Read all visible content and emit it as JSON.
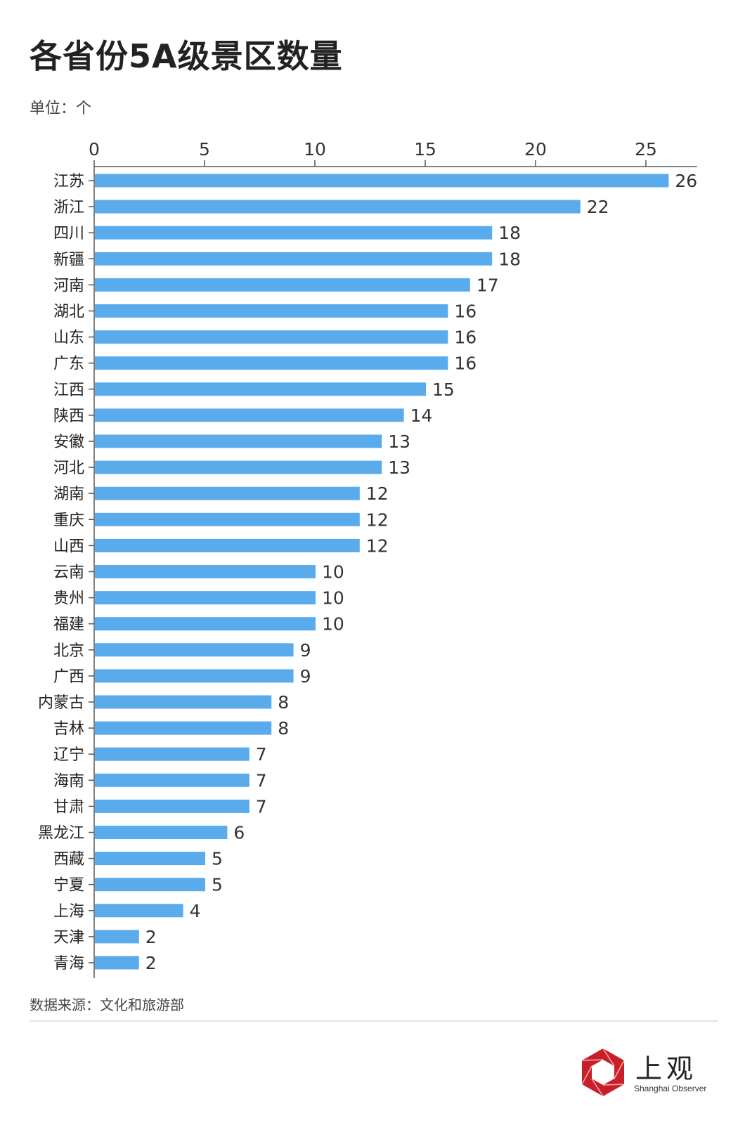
{
  "chart_data": {
    "type": "bar",
    "orientation": "horizontal",
    "title": "各省份5A级景区数量",
    "unit_label": "单位：个",
    "xlabel": "",
    "ylabel": "",
    "xlim": [
      0,
      27
    ],
    "xticks": [
      0,
      5,
      10,
      15,
      20,
      25
    ],
    "grid": false,
    "bar_color": "#5aabec",
    "categories": [
      "江苏",
      "浙江",
      "四川",
      "新疆",
      "河南",
      "湖北",
      "山东",
      "广东",
      "江西",
      "陕西",
      "安徽",
      "河北",
      "湖南",
      "重庆",
      "山西",
      "云南",
      "贵州",
      "福建",
      "北京",
      "广西",
      "内蒙古",
      "吉林",
      "辽宁",
      "海南",
      "甘肃",
      "黑龙江",
      "西藏",
      "宁夏",
      "上海",
      "天津",
      "青海"
    ],
    "values": [
      26,
      22,
      18,
      18,
      17,
      16,
      16,
      16,
      15,
      14,
      13,
      13,
      12,
      12,
      12,
      10,
      10,
      10,
      9,
      9,
      8,
      8,
      7,
      7,
      7,
      6,
      5,
      5,
      4,
      2,
      2
    ],
    "source": "数据来源：文化和旅游部"
  },
  "logo": {
    "cn": "上观",
    "en": "Shanghai Observer",
    "color": "#c8202a"
  }
}
